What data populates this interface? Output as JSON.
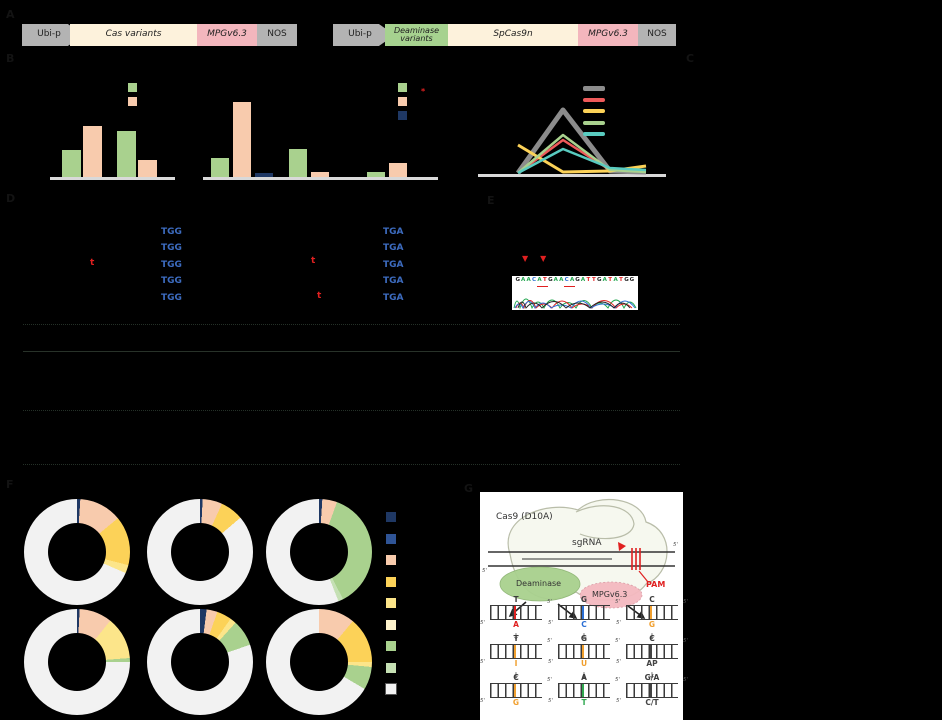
{
  "panel_letters": {
    "a": "A",
    "b": "B",
    "c": "C",
    "d": "D",
    "e": "E",
    "f": "F",
    "g": "G"
  },
  "constructs": {
    "c1": {
      "promoter": "Ubi-p",
      "boxes": [
        {
          "label": "Cas variants",
          "color": "#fdf2dc",
          "italic": true
        },
        {
          "label": "MPGv6.3",
          "color": "#f3b6bd",
          "italic": true
        },
        {
          "label": "NOS",
          "color": "#b3b3b3",
          "italic": false
        }
      ]
    },
    "c2": {
      "promoter": "Ubi-p",
      "boxes": [
        {
          "label": "Deaminase variants",
          "color": "#a6d28f",
          "italic": true
        },
        {
          "label": "SpCas9n",
          "color": "#fdf2dc",
          "italic": true
        },
        {
          "label": "MPGv6.3",
          "color": "#f3b6bd",
          "italic": true
        },
        {
          "label": "NOS",
          "color": "#b3b3b3",
          "italic": false
        }
      ]
    }
  },
  "chart_data": [
    {
      "id": "bar-cas",
      "type": "bar",
      "title": "",
      "xlabel": "",
      "ylabel": "",
      "ylim": [
        0,
        110
      ],
      "categories": [
        "",
        ""
      ],
      "series": [
        {
          "name": "",
          "color": "#a9d18e",
          "values": [
            27,
            46
          ]
        },
        {
          "name": "",
          "color": "#f8cbad",
          "values": [
            51,
            17
          ]
        }
      ],
      "legend_colors": [
        "#a9d18e",
        "#f8cbad"
      ],
      "legend_position": "top-right",
      "grid": false
    },
    {
      "id": "bar-deaminase",
      "type": "bar",
      "title": "",
      "xlabel": "",
      "ylabel": "",
      "ylim": [
        0,
        110
      ],
      "categories": [
        "",
        "",
        ""
      ],
      "series": [
        {
          "name": "",
          "color": "#a9d18e",
          "values": [
            19,
            28,
            5
          ]
        },
        {
          "name": "",
          "color": "#f8cbad",
          "values": [
            75,
            5,
            14
          ]
        },
        {
          "name": "",
          "color": "#1f3864",
          "values": [
            4,
            0,
            0
          ]
        }
      ],
      "legend_colors": [
        "#a9d18e",
        "#f8cbad",
        "#1f3864"
      ],
      "legend_position": "top-right",
      "grid": false
    },
    {
      "id": "line-window",
      "type": "line",
      "title": "",
      "xlabel": "",
      "ylabel": "",
      "ylim": [
        0,
        110
      ],
      "x": [
        "",
        "",
        "",
        ""
      ],
      "series": [
        {
          "name": "",
          "color": "#8c8c8c",
          "width": 5,
          "values": [
            1,
            64,
            3,
            2
          ]
        },
        {
          "name": "",
          "color": "#ee5a5a",
          "width": 2.5,
          "values": [
            1,
            34,
            4,
            3
          ]
        },
        {
          "name": "",
          "color": "#fcd258",
          "width": 3,
          "values": [
            29,
            2,
            3,
            8
          ]
        },
        {
          "name": "",
          "color": "#a9d18e",
          "width": 2.5,
          "values": [
            1,
            39,
            4,
            2
          ]
        },
        {
          "name": "",
          "color": "#59cbc0",
          "width": 2.5,
          "values": [
            1,
            25,
            6,
            4
          ]
        }
      ],
      "legend_colors": [
        "#8c8c8c",
        "#ee5a5a",
        "#fcd258",
        "#a9d18e",
        "#59cbc0"
      ],
      "legend_position": "top-right",
      "grid": false
    },
    {
      "id": "donut-grid",
      "type": "pie",
      "legend_position": "right",
      "legend_colors": [
        "#1f3864",
        "#2f5496",
        "#f8cbad",
        "#fcd258",
        "#fce58a",
        "#fdf2cc",
        "#a9d18e",
        "#c5e0b4",
        "#f2f2f2"
      ],
      "donuts": [
        {
          "name": "",
          "segments": [
            [
              "#1f3864",
              1
            ],
            [
              "#f8cbad",
              13
            ],
            [
              "#fcd258",
              15
            ],
            [
              "#fce58a",
              2.5
            ],
            [
              "#f2f2f2",
              68.5
            ]
          ]
        },
        {
          "name": "",
          "segments": [
            [
              "#1f3864",
              0.8
            ],
            [
              "#f8cbad",
              6
            ],
            [
              "#fcd258",
              7
            ],
            [
              "#f2f2f2",
              86.2
            ]
          ]
        },
        {
          "name": "",
          "segments": [
            [
              "#1f3864",
              1
            ],
            [
              "#f8cbad",
              4.5
            ],
            [
              "#a9d18e",
              37
            ],
            [
              "#c5e0b4",
              1.5
            ],
            [
              "#f2f2f2",
              56
            ]
          ]
        },
        {
          "name": "",
          "segments": [
            [
              "#1f3864",
              0.8
            ],
            [
              "#f8cbad",
              10
            ],
            [
              "#fce58a",
              13
            ],
            [
              "#a9d18e",
              1.2
            ],
            [
              "#f2f2f2",
              75
            ]
          ]
        },
        {
          "name": "",
          "segments": [
            [
              "#1f3864",
              2
            ],
            [
              "#f8cbad",
              3.3
            ],
            [
              "#fcd258",
              4.5
            ],
            [
              "#fce58a",
              1.9
            ],
            [
              "#a9d18e",
              8
            ],
            [
              "#f2f2f2",
              80.3
            ]
          ]
        },
        {
          "name": "",
          "segments": [
            [
              "#f8cbad",
              11
            ],
            [
              "#fcd258",
              14
            ],
            [
              "#fce58a",
              1.5
            ],
            [
              "#a9d18e",
              7
            ],
            [
              "#f2f2f2",
              66.5
            ]
          ]
        }
      ]
    }
  ],
  "alignment": {
    "col1_pams": [
      "TGG",
      "TGG",
      "TGG",
      "TGG",
      "TGG"
    ],
    "col2_pams": [
      "TGA",
      "TGA",
      "TGA",
      "TGA",
      "TGA"
    ],
    "red_inserts": [
      "t",
      "t",
      "t"
    ],
    "snp_arrows": "▼▼",
    "legend_asterisk": "*"
  },
  "chromatogram": {
    "sequence": "GAACATGAACAGATTGATATGG",
    "base_colors": {
      "G": "#222222",
      "A": "#1ea54c",
      "C": "#2b6fd4",
      "T": "#e02020"
    },
    "underline_idx": [
      4,
      9
    ]
  },
  "mechanism": {
    "cas9_label": "Cas9 (D10A)",
    "sgrna_label": "sgRNA",
    "pam_label": "PAM",
    "deaminase_label": "Deaminase",
    "reporter_label": "MPGv6.3",
    "five_prime": "5'",
    "pathways": [
      {
        "steps": [
          {
            "top": "T",
            "bottom": "A",
            "bc": "#e02020"
          },
          {
            "top": "T",
            "bottom": "I",
            "bc": "#f09f2e"
          },
          {
            "top": "C",
            "bottom": "G",
            "bc": "#f09f2e"
          }
        ]
      },
      {
        "steps": [
          {
            "top": "G",
            "bottom": "C",
            "bc": "#2b6fd4"
          },
          {
            "top": "G",
            "bottom": "U",
            "bc": "#f09f2e"
          },
          {
            "top": "A",
            "bottom": "T",
            "bc": "#2fa84f"
          }
        ]
      },
      {
        "steps": [
          {
            "top": "C",
            "bottom": "G",
            "bc": "#f09f2e"
          },
          {
            "top": "C",
            "bottom": "AP",
            "bc": "#444444"
          },
          {
            "top": "G/A",
            "bottom": "C/T",
            "bc": "#444444"
          }
        ]
      }
    ],
    "arrow_glyph": "↓"
  },
  "accent_colors": {
    "pam_blue": "#3d6cc0",
    "insert_red": "#e02020",
    "axis_gray": "#d9d9d9"
  }
}
